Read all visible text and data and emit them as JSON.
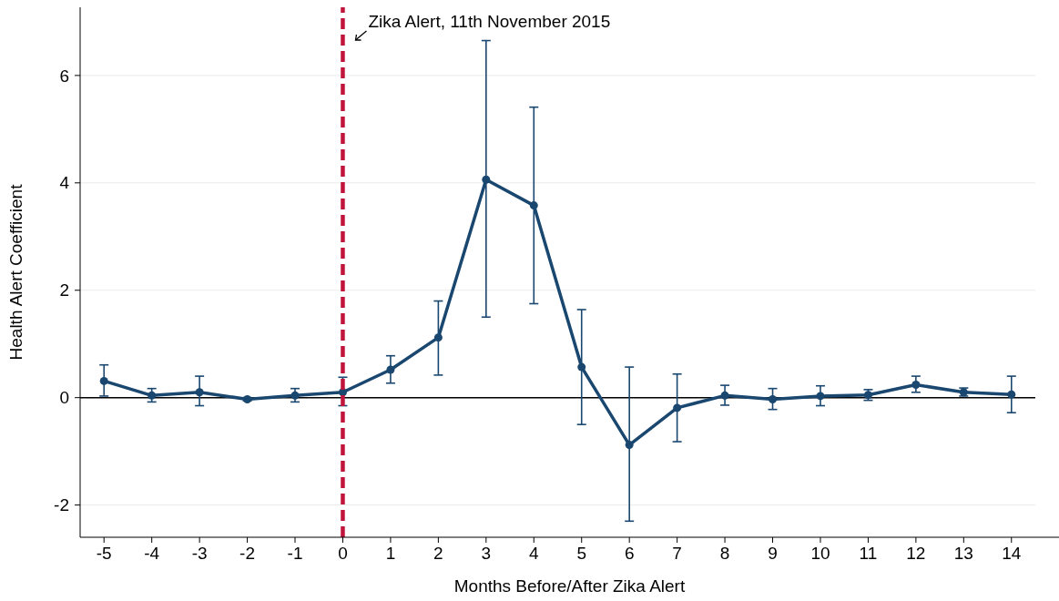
{
  "chart_data": {
    "type": "line",
    "xlabel": "Months Before/After Zika Alert",
    "ylabel": "Health Alert Coefficient",
    "x": [
      -5,
      -4,
      -3,
      -2,
      -1,
      0,
      1,
      2,
      3,
      4,
      5,
      6,
      7,
      8,
      9,
      10,
      11,
      12,
      13,
      14
    ],
    "series": [
      {
        "color": "#1a476f",
        "values": [
          0.31,
          0.04,
          0.1,
          -0.03,
          0.04,
          0.1,
          0.52,
          1.12,
          4.06,
          3.58,
          0.57,
          -0.88,
          -0.19,
          0.04,
          -0.03,
          0.03,
          0.05,
          0.24,
          0.1,
          0.06
        ],
        "errors": [
          [
            0.03,
            0.61
          ],
          [
            -0.08,
            0.17
          ],
          [
            -0.15,
            0.4
          ],
          [
            -0.06,
            0.0
          ],
          [
            -0.08,
            0.17
          ],
          [
            -0.15,
            0.38
          ],
          [
            0.27,
            0.78
          ],
          [
            0.42,
            1.8
          ],
          [
            1.5,
            6.65
          ],
          [
            1.75,
            5.41
          ],
          [
            -0.5,
            1.64
          ],
          [
            -2.3,
            0.57
          ],
          [
            -0.82,
            0.44
          ],
          [
            -0.14,
            0.23
          ],
          [
            -0.22,
            0.17
          ],
          [
            -0.15,
            0.22
          ],
          [
            -0.05,
            0.15
          ],
          [
            0.1,
            0.4
          ],
          [
            0.03,
            0.18
          ],
          [
            -0.28,
            0.4
          ]
        ]
      }
    ],
    "xlim": [
      -5.5,
      14.5
    ],
    "xticks": [
      -5,
      -4,
      -3,
      -2,
      -1,
      0,
      1,
      2,
      3,
      4,
      5,
      6,
      7,
      8,
      9,
      10,
      11,
      12,
      13,
      14
    ],
    "ylim": [
      -2.6,
      7.27
    ],
    "yticks": [
      -2,
      0,
      2,
      4,
      6
    ],
    "grid": "y",
    "marker": "circle",
    "line_style": "solid",
    "ref_lines": [
      {
        "axis": "y",
        "value": 0,
        "color": "#000000",
        "line_style": "solid"
      },
      {
        "axis": "x",
        "value": 0,
        "color": "#c0143c",
        "line_style": "dashed",
        "label": "Zika Alert, 11th November 2015"
      }
    ]
  }
}
